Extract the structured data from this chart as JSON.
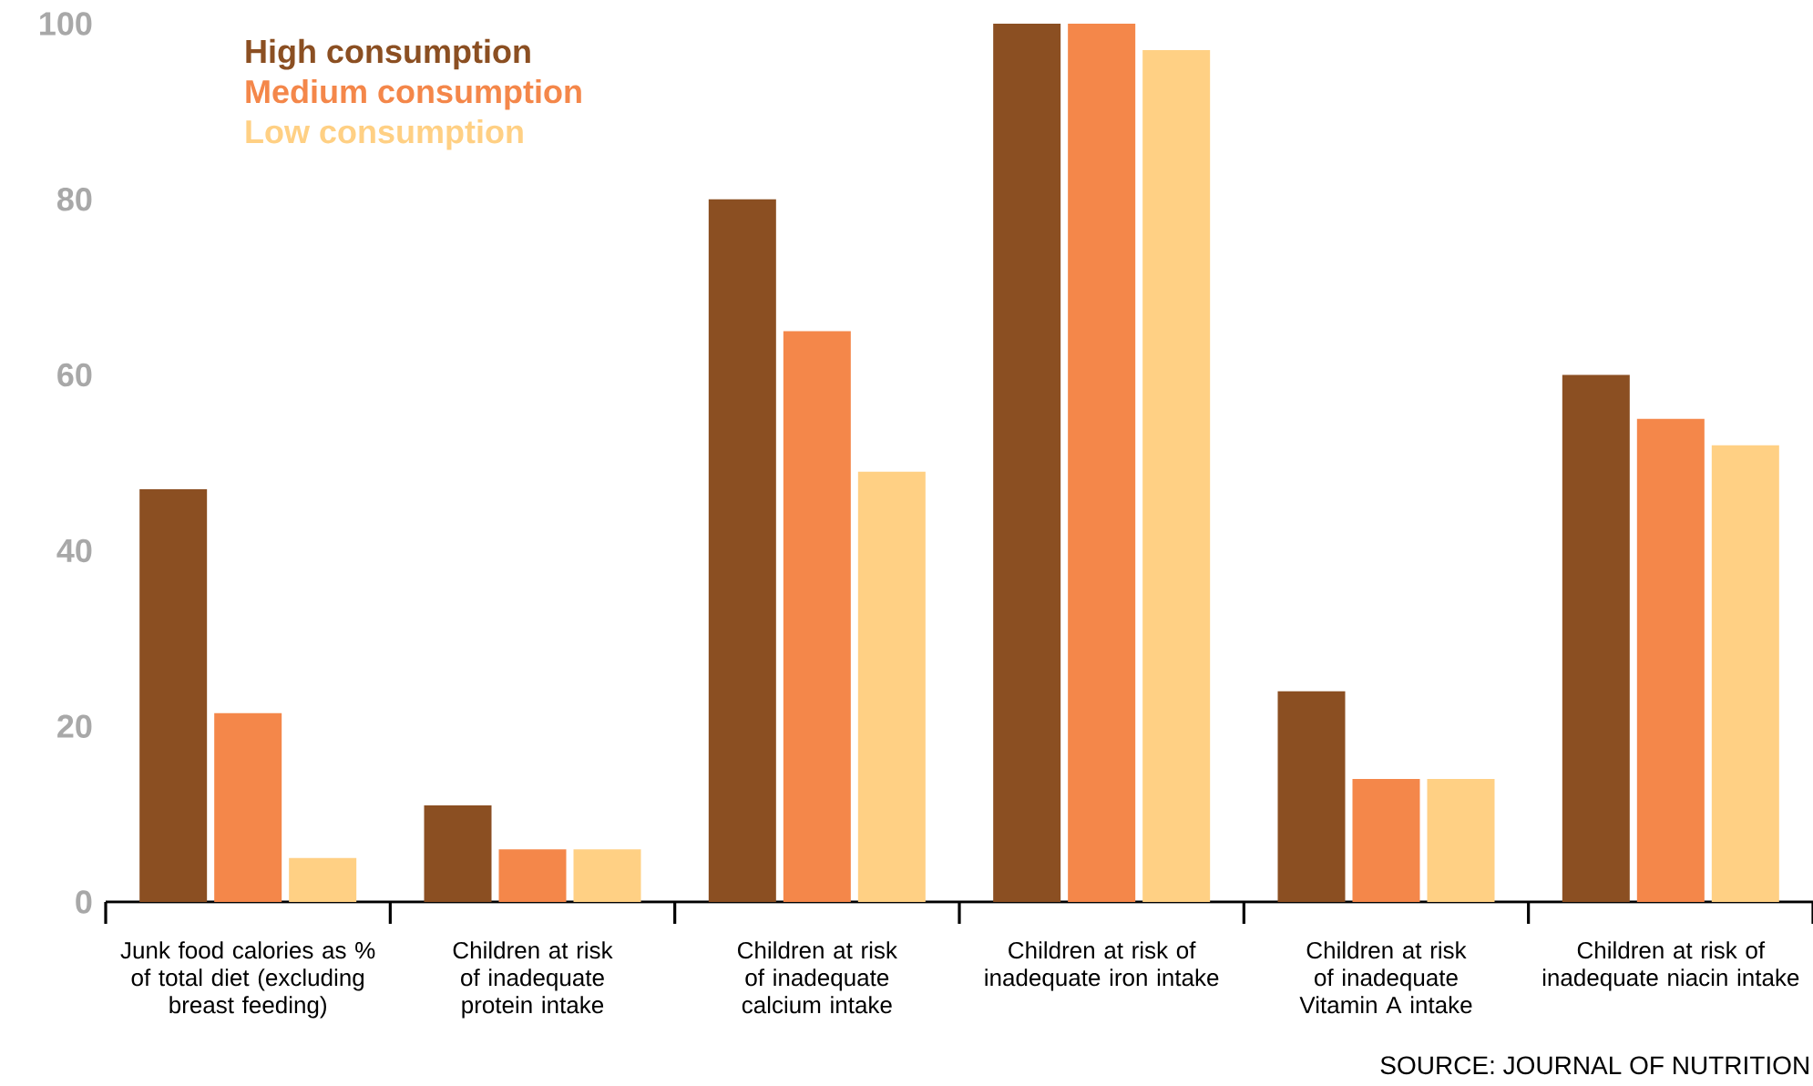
{
  "chart_data": {
    "type": "bar",
    "categories": [
      "Junk food calories as % of total diet (excluding breast feeding)",
      "Children at risk of inadequate protein intake",
      "Children at risk of inadequate calcium intake",
      "Children at risk of inadequate iron intake",
      "Children at risk of inadequate Vitamin A intake",
      "Children at risk of inadequate niacin intake"
    ],
    "series": [
      {
        "name": "High consumption",
        "color": "#8b4f22",
        "values": [
          47,
          11,
          80,
          100,
          24,
          60
        ]
      },
      {
        "name": "Medium consumption",
        "color": "#f4874a",
        "values": [
          21.5,
          6,
          65,
          100,
          14,
          55
        ]
      },
      {
        "name": "Low consumption",
        "color": "#ffd084",
        "values": [
          5,
          6,
          49,
          97,
          14,
          52
        ]
      }
    ],
    "ylim": [
      0,
      100
    ],
    "yticks": [
      0,
      20,
      40,
      60,
      80,
      100
    ],
    "grid": false,
    "legend": "top left",
    "annotations": [
      "SOURCE: JOURNAL OF NUTRITION"
    ]
  }
}
